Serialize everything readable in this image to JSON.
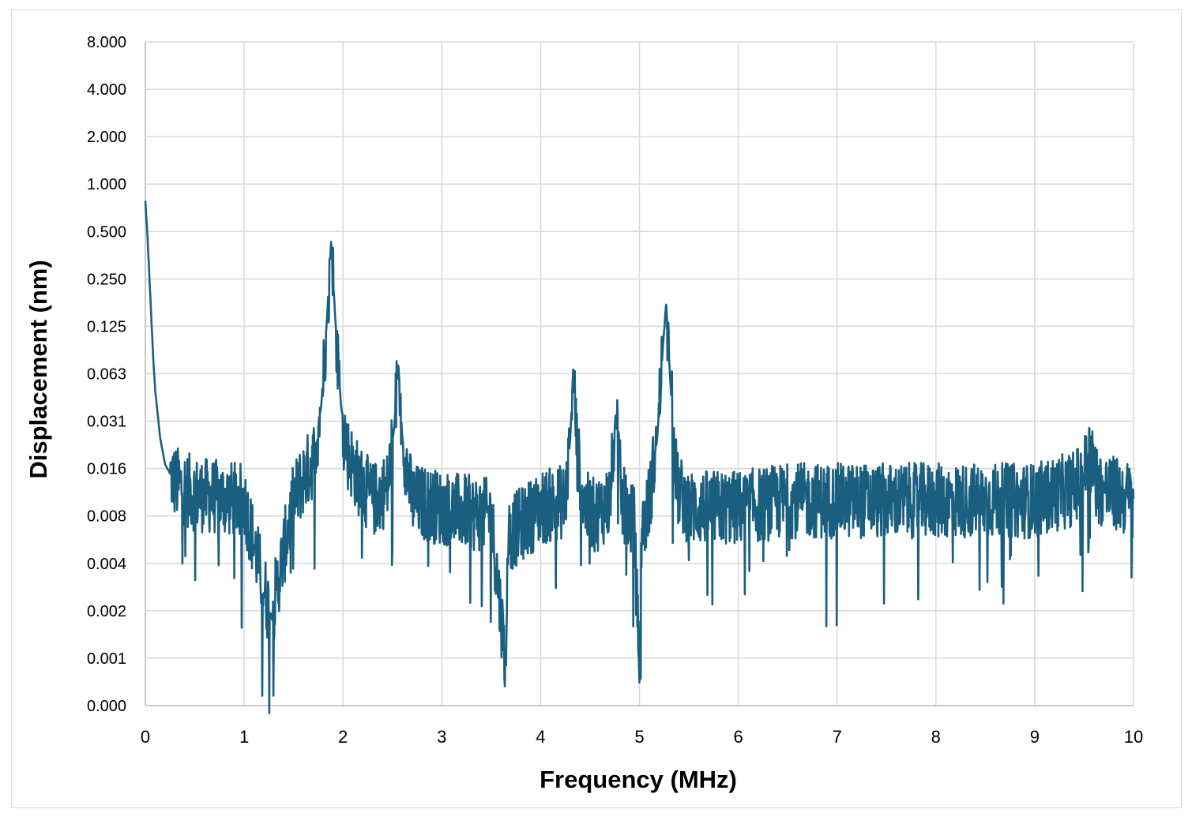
{
  "chart_data": {
    "type": "line",
    "title": "",
    "xlabel": "Frequency (MHz)",
    "ylabel": "Displacement (nm)",
    "xlim": [
      0,
      10
    ],
    "x_ticks": [
      "0",
      "1",
      "2",
      "3",
      "4",
      "5",
      "6",
      "7",
      "8",
      "9",
      "10"
    ],
    "y_ticks": [
      "0.000",
      "0.001",
      "0.002",
      "0.004",
      "0.008",
      "0.016",
      "0.031",
      "0.063",
      "0.125",
      "0.250",
      "0.500",
      "1.000",
      "2.000",
      "4.000",
      "8.000"
    ],
    "y_scale": "log2 (category-spaced ticks)",
    "grid": true,
    "legend": "none",
    "series": [
      {
        "color": "#1a5f80",
        "x": [
          0,
          0.02,
          0.05,
          0.08,
          0.1,
          0.15,
          0.2,
          0.3,
          0.5,
          1.0,
          1.27,
          1.5,
          1.6,
          1.7,
          1.78,
          1.84,
          1.88,
          1.92,
          1.98,
          2.05,
          2.15,
          2.3,
          2.45,
          2.52,
          2.56,
          2.6,
          2.7,
          3.0,
          3.5,
          3.65,
          3.67,
          4.0,
          4.25,
          4.3,
          4.33,
          4.37,
          4.45,
          4.55,
          4.7,
          4.76,
          4.82,
          4.95,
          5.0,
          5.02,
          5.1,
          5.18,
          5.24,
          5.27,
          5.31,
          5.38,
          5.5,
          6.0,
          6.5,
          7.0,
          7.5,
          8.0,
          8.5,
          9.0,
          9.4,
          9.5,
          9.55,
          9.65,
          10.0
        ],
        "y": [
          0.8,
          0.5,
          0.2,
          0.08,
          0.05,
          0.025,
          0.017,
          0.013,
          0.011,
          0.01,
          0.0018,
          0.01,
          0.014,
          0.018,
          0.04,
          0.15,
          0.45,
          0.15,
          0.04,
          0.02,
          0.014,
          0.01,
          0.012,
          0.03,
          0.075,
          0.025,
          0.01,
          0.009,
          0.008,
          0.0009,
          0.006,
          0.009,
          0.01,
          0.025,
          0.07,
          0.02,
          0.009,
          0.008,
          0.01,
          0.036,
          0.01,
          0.007,
          0.0007,
          0.006,
          0.01,
          0.025,
          0.1,
          0.18,
          0.06,
          0.012,
          0.009,
          0.009,
          0.01,
          0.01,
          0.01,
          0.01,
          0.01,
          0.01,
          0.012,
          0.015,
          0.02,
          0.012,
          0.01
        ]
      }
    ]
  }
}
